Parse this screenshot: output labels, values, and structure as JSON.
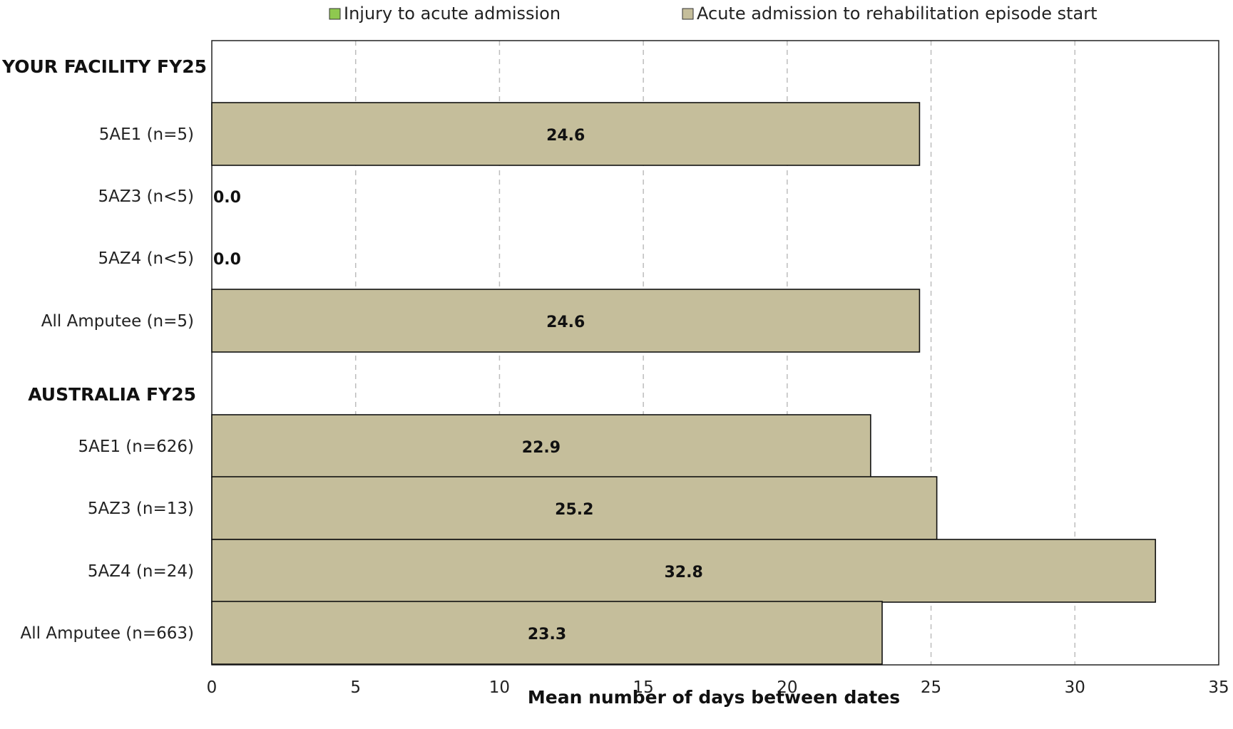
{
  "chart_data": {
    "type": "bar",
    "orientation": "horizontal",
    "stacked": true,
    "xlabel": "Mean number of days between dates",
    "xlim": [
      0,
      35
    ],
    "x_ticks": [
      "0",
      "5",
      "10",
      "15",
      "20",
      "25",
      "30",
      "35"
    ],
    "grid": "vertical dashed",
    "legend_position": "top",
    "groups": [
      "YOUR FACILITY FY25",
      "AUSTRALIA FY25"
    ],
    "categories": [
      {
        "group": "YOUR FACILITY FY25",
        "label": "5AE1 (n=5)"
      },
      {
        "group": "YOUR FACILITY FY25",
        "label": "5AZ3 (n<5)"
      },
      {
        "group": "YOUR FACILITY FY25",
        "label": "5AZ4 (n<5)"
      },
      {
        "group": "YOUR FACILITY FY25",
        "label": "All Amputee (n=5)"
      },
      {
        "group": "AUSTRALIA FY25",
        "label": "5AE1 (n=626)"
      },
      {
        "group": "AUSTRALIA FY25",
        "label": "5AZ3 (n=13)"
      },
      {
        "group": "AUSTRALIA FY25",
        "label": "5AZ4 (n=24)"
      },
      {
        "group": "AUSTRALIA FY25",
        "label": "All Amputee (n=663)"
      }
    ],
    "series": [
      {
        "name": "Injury to acute admission",
        "color": "#8fc94f",
        "values": [
          0,
          0,
          0,
          0,
          0,
          0,
          0,
          0
        ]
      },
      {
        "name": "Acute admission to rehabilitation episode start",
        "color": "#c5be9b",
        "values": [
          24.6,
          0,
          0,
          24.6,
          22.9,
          25.2,
          32.8,
          23.3
        ]
      }
    ],
    "data_labels": [
      "24.6",
      "0.0",
      "0.0",
      "24.6",
      "22.9",
      "25.2",
      "32.8",
      "23.3"
    ]
  }
}
